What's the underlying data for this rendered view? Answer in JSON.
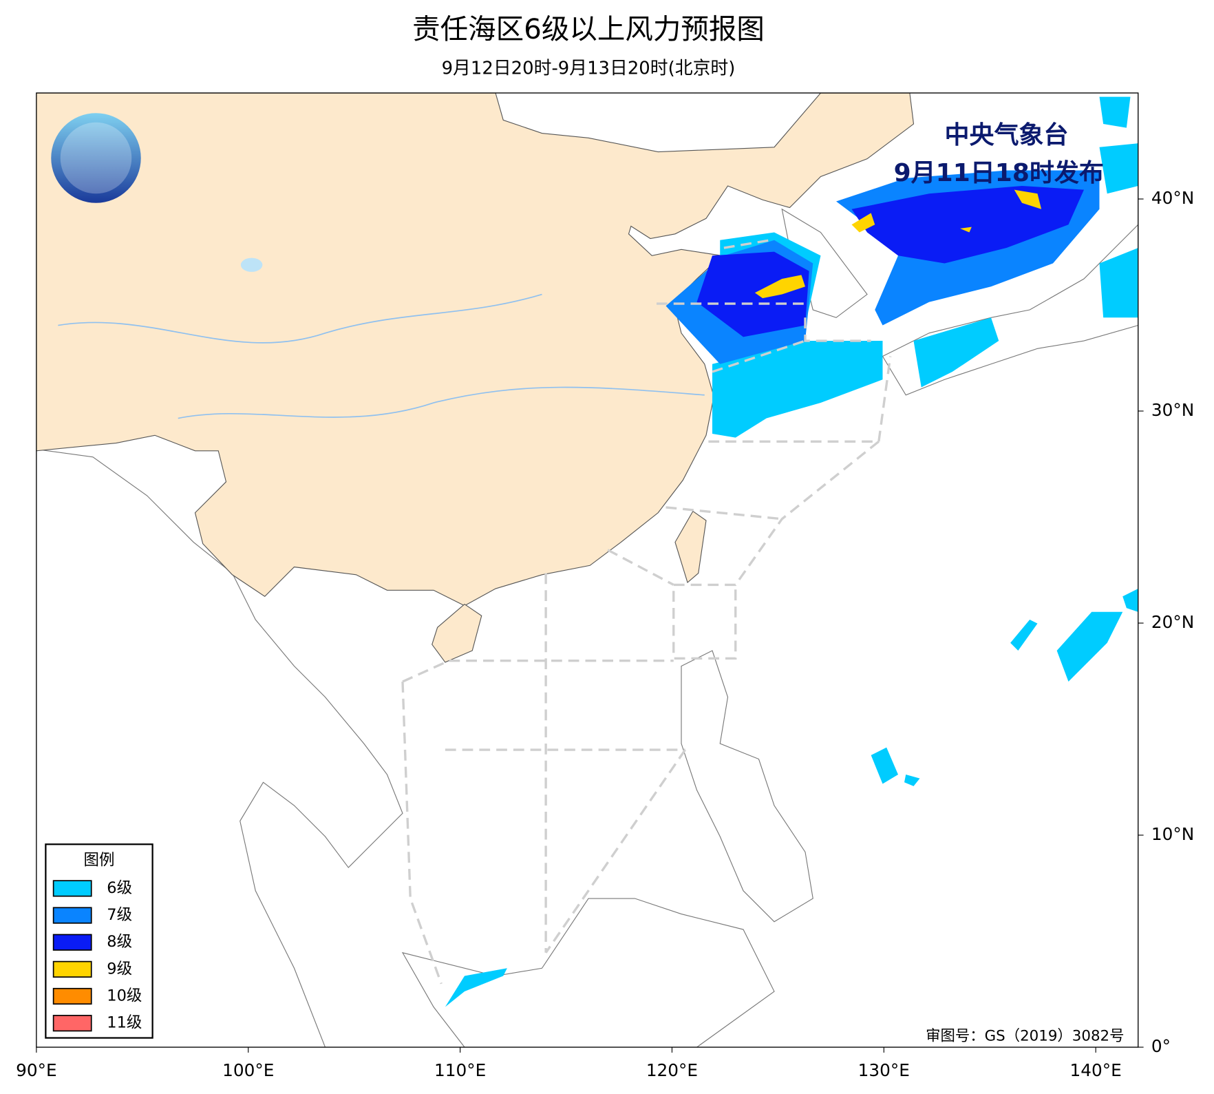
{
  "header": {
    "title": "责任海区6级以上风力预报图",
    "subtitle": "9月12日20时-9月13日20时(北京时)"
  },
  "issuer": {
    "agency": "中央气象台",
    "issued": "9月11日18时发布"
  },
  "map": {
    "xlim": [
      90,
      142
    ],
    "ylim": [
      0,
      45
    ],
    "xticks": [
      {
        "value": 90,
        "label": "90°E"
      },
      {
        "value": 100,
        "label": "100°E"
      },
      {
        "value": 110,
        "label": "110°E"
      },
      {
        "value": 120,
        "label": "120°E"
      },
      {
        "value": 130,
        "label": "130°E"
      },
      {
        "value": 140,
        "label": "140°E"
      }
    ],
    "yticks": [
      {
        "value": 0,
        "label": "0°"
      },
      {
        "value": 10,
        "label": "10°N"
      },
      {
        "value": 20,
        "label": "20°N"
      },
      {
        "value": 30,
        "label": "30°N"
      },
      {
        "value": 40,
        "label": "40°N"
      }
    ]
  },
  "legend": {
    "title": "图例",
    "items": [
      {
        "label": "6级",
        "color": "#00ccff"
      },
      {
        "label": "7级",
        "color": "#0a84ff"
      },
      {
        "label": "8级",
        "color": "#0a1cf5"
      },
      {
        "label": "9级",
        "color": "#ffd400"
      },
      {
        "label": "10级",
        "color": "#ff8c00"
      },
      {
        "label": "11级",
        "color": "#ff6666"
      }
    ]
  },
  "approval": "审图号：GS（2019）3082号"
}
